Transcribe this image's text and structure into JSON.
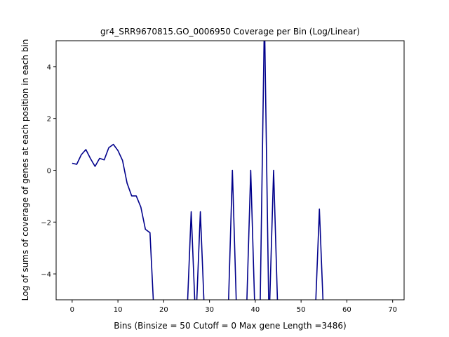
{
  "chart_data": {
    "type": "line",
    "title": "gr4_SRR9670815.GO_0006950 Coverage per Bin (Log/Linear)",
    "xlabel": "Bins  (Binsize = 50 Cutoff = 0 Max gene Length =3486)",
    "ylabel": "Log of sums of coverage of genes at each position in each bin",
    "xlim": [
      -3.5,
      72.5
    ],
    "ylim": [
      -5,
      5
    ],
    "xticks": [
      0,
      10,
      20,
      30,
      40,
      50,
      60,
      70
    ],
    "yticks": [
      -4,
      -2,
      0,
      2,
      4
    ],
    "grid": false,
    "line_color": "#00008b",
    "series": [
      {
        "x": [
          0,
          1,
          2,
          3,
          4,
          5,
          6,
          7,
          8,
          9,
          10,
          11,
          12,
          13,
          14,
          15,
          16,
          17,
          18,
          25,
          26,
          27,
          28,
          29,
          34,
          35,
          36,
          38,
          39,
          40,
          41,
          42,
          43,
          44,
          45,
          53,
          54,
          55
        ],
        "y": [
          0.27,
          0.23,
          0.6,
          0.8,
          0.45,
          0.15,
          0.46,
          0.4,
          0.87,
          1.0,
          0.76,
          0.38,
          -0.5,
          -0.99,
          -0.99,
          -1.42,
          -2.28,
          -2.41,
          -6,
          -6,
          -1.6,
          -6,
          -1.6,
          -6,
          -6,
          0.0,
          -6,
          -6,
          0.0,
          -6,
          -6,
          6,
          -6,
          0.0,
          -6,
          -6,
          -1.5,
          -6
        ]
      }
    ]
  }
}
